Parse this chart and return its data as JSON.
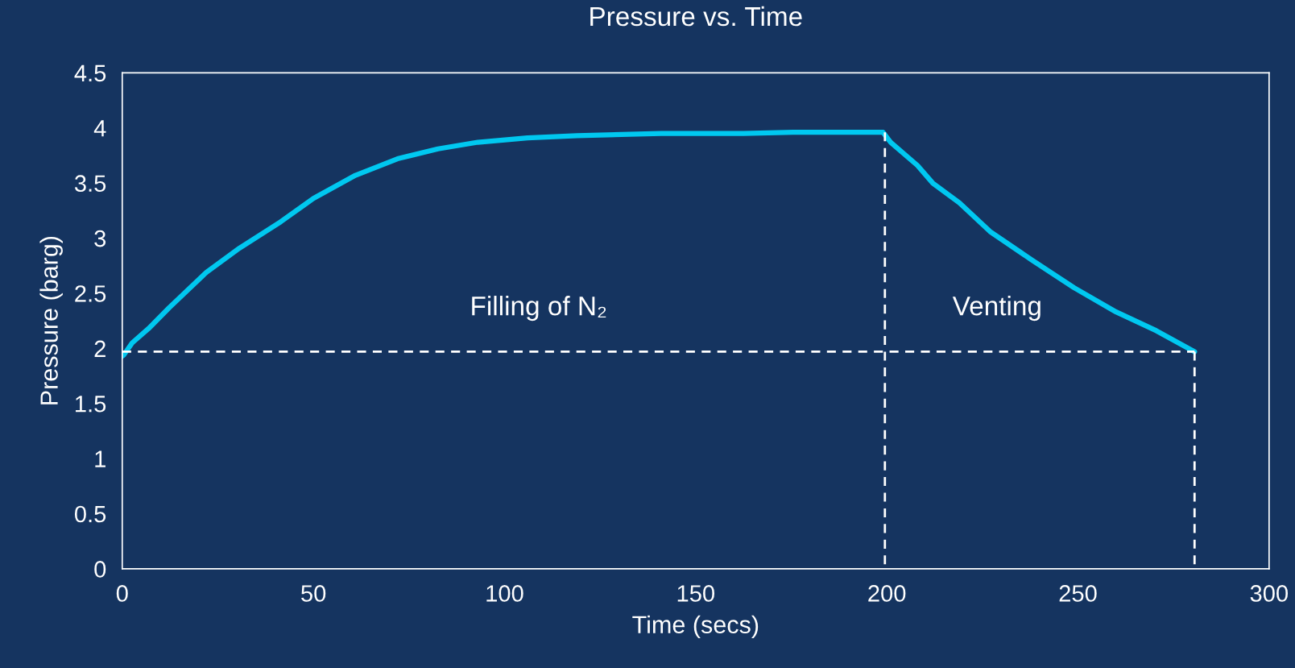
{
  "chart_data": {
    "type": "line",
    "title": "Pressure vs. Time",
    "xlabel": "Time (secs)",
    "ylabel": "Pressure (barg)",
    "xlim": [
      0,
      300
    ],
    "xticks": [
      0,
      50,
      100,
      150,
      200,
      250,
      300
    ],
    "ylim": [
      0,
      4.5
    ],
    "yticks": [
      0,
      0.5,
      1,
      1.5,
      2,
      2.5,
      3,
      3.5,
      4,
      4.5
    ],
    "grid": false,
    "legend": false,
    "marker": "none",
    "series": [
      {
        "color": "#00c8f0",
        "line_style": "solid",
        "x": [
          0,
          0.4,
          2.6,
          6.9,
          12.3,
          22,
          30.7,
          41.5,
          50,
          61,
          72,
          82.6,
          93,
          106,
          119,
          141,
          162.5,
          175.5,
          199,
          201,
          208,
          212,
          219,
          227,
          238,
          249,
          260,
          270.5,
          280.5
        ],
        "values": [
          1.93,
          1.94,
          2.05,
          2.18,
          2.37,
          2.69,
          2.91,
          3.15,
          3.36,
          3.57,
          3.72,
          3.81,
          3.87,
          3.91,
          3.93,
          3.95,
          3.95,
          3.96,
          3.96,
          3.87,
          3.66,
          3.5,
          3.32,
          3.06,
          2.8,
          2.55,
          2.33,
          2.16,
          1.97
        ]
      },
      {
        "color": "#ffffff",
        "line_style": "dashed",
        "x": [
          0,
          280.5
        ],
        "values": [
          1.97,
          1.97
        ]
      },
      {
        "color": "#ffffff",
        "line_style": "dashed",
        "x": [
          199.5,
          199.5
        ],
        "values": [
          3.96,
          0
        ]
      },
      {
        "color": "#ffffff",
        "line_style": "dashed",
        "x": [
          280.5,
          280.5
        ],
        "values": [
          1.97,
          0
        ]
      }
    ],
    "annotations": [
      "Filling of N₂",
      "Venting"
    ]
  }
}
